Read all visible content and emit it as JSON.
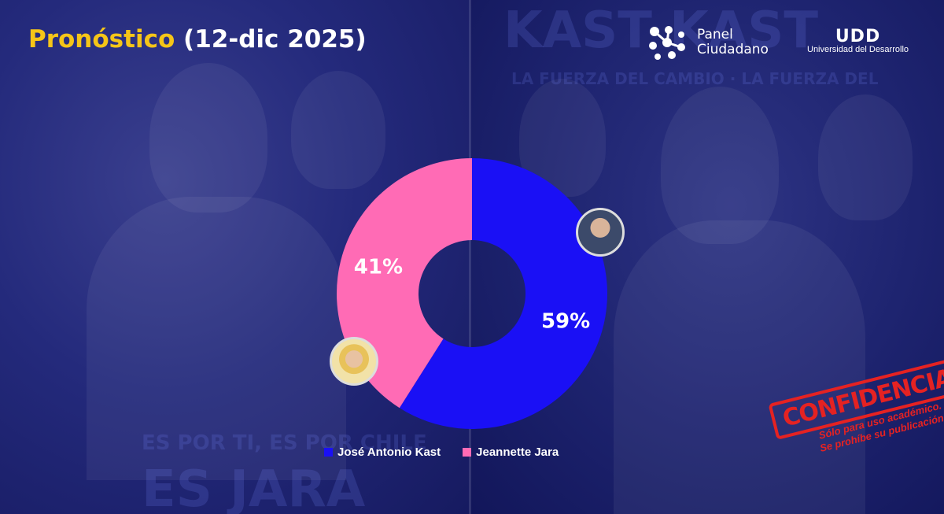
{
  "header": {
    "title_accent": "Pronóstico",
    "title_rest": " (12-dic 2025)"
  },
  "logos": {
    "panel_line1": "Panel",
    "panel_line2": "Ciudadano",
    "udd_mark": "UDD",
    "udd_name": "Universidad del Desarrollo"
  },
  "stamp": {
    "label": "CONFIDENCIAL",
    "line1": "Sólo para uso académico.",
    "line2": "Se prohíbe su publicación."
  },
  "background_text": {
    "right_top": "KAST KAST",
    "right_sub": "LA FUERZA DEL CAMBIO · LA FUERZA DEL",
    "left_sub": "ES POR TI, ES POR CHILE",
    "left_big": "ES JARA"
  },
  "chart_data": {
    "type": "pie",
    "donut": true,
    "title": "",
    "legend_position": "bottom",
    "slices": [
      {
        "name": "José Antonio Kast",
        "value": 59,
        "label": "59%",
        "color": "#1a10f5"
      },
      {
        "name": "Jeannette Jara",
        "value": 41,
        "label": "41%",
        "color": "#ff6bb5"
      }
    ]
  },
  "icons": {
    "kast_avatar": "portrait-kast-icon",
    "jara_avatar": "portrait-jara-icon"
  }
}
